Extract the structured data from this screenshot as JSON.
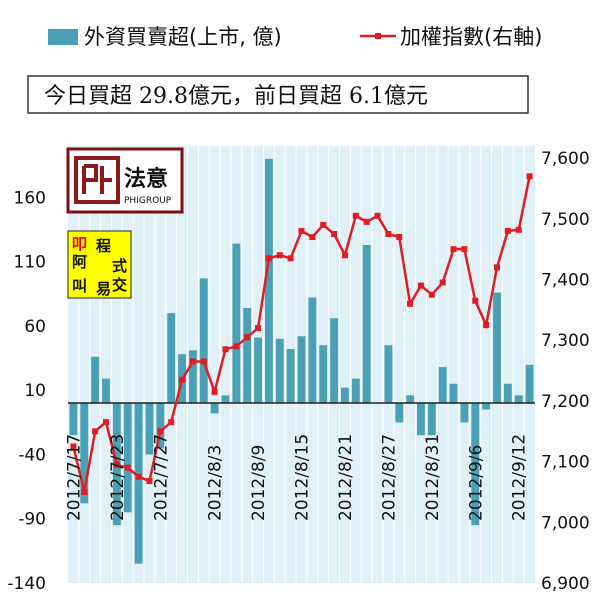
{
  "chart_data": {
    "type": "bar+line",
    "legend": {
      "bar_label": "外資買賣超(上市, 億)",
      "line_label": "加權指數(右軸)"
    },
    "banner": "今日買超 29.8億元，前日買超 6.1億元",
    "logos": {
      "top_brand": "法意",
      "top_sub": "PHIGROUP",
      "bottom_chars": [
        "叩",
        "阿",
        "叫",
        "程",
        "式",
        "易",
        "交"
      ]
    },
    "left_axis": {
      "ylim": [
        -140,
        200
      ],
      "ticks": [
        -140,
        -90,
        -40,
        10,
        60,
        110,
        160
      ]
    },
    "right_axis": {
      "ylim": [
        6900,
        7620
      ],
      "ticks": [
        "6,900",
        "7,000",
        "7,100",
        "7,200",
        "7,300",
        "7,400",
        "7,500",
        "7,600"
      ]
    },
    "x_tick_labels": [
      {
        "label": "2012/7/17",
        "index": 0
      },
      {
        "label": "2012/7/23",
        "index": 4
      },
      {
        "label": "2012/7/27",
        "index": 8
      },
      {
        "label": "2012/8/3",
        "index": 13
      },
      {
        "label": "2012/8/9",
        "index": 17
      },
      {
        "label": "2012/8/15",
        "index": 21
      },
      {
        "label": "2012/8/21",
        "index": 25
      },
      {
        "label": "2012/8/27",
        "index": 29
      },
      {
        "label": "2012/8/31",
        "index": 33
      },
      {
        "label": "2012/9/6",
        "index": 37
      },
      {
        "label": "2012/9/12",
        "index": 41
      }
    ],
    "series": [
      {
        "name": "外資買賣超(上市, 億)",
        "type": "bar",
        "color": "#4AA0B5",
        "values": [
          -25,
          -78,
          36,
          19,
          -95,
          -85,
          -125,
          -40,
          -35,
          70,
          38,
          41,
          97,
          -8,
          6,
          124,
          74,
          51,
          190,
          50,
          42,
          52,
          82,
          45,
          66,
          12,
          19,
          123,
          0,
          45,
          -15,
          6,
          -25,
          -25,
          28,
          15,
          -15,
          -95,
          -5,
          86,
          15,
          6,
          29.8
        ]
      },
      {
        "name": "加權指數(右軸)",
        "type": "line",
        "color": "#E31B23",
        "values": [
          7125,
          7050,
          7150,
          7165,
          7095,
          7090,
          7075,
          7068,
          7150,
          7165,
          7235,
          7265,
          7265,
          7215,
          7285,
          7290,
          7305,
          7320,
          7435,
          7440,
          7435,
          7480,
          7470,
          7490,
          7475,
          7440,
          7505,
          7495,
          7505,
          7475,
          7470,
          7360,
          7390,
          7375,
          7395,
          7450,
          7450,
          7365,
          7325,
          7420,
          7480,
          7482,
          7570
        ]
      }
    ],
    "colors": {
      "bar": "#4AA0B5",
      "line": "#E31B23",
      "grid": "#ffffff",
      "plot_bg": "#DFF0F7"
    }
  }
}
